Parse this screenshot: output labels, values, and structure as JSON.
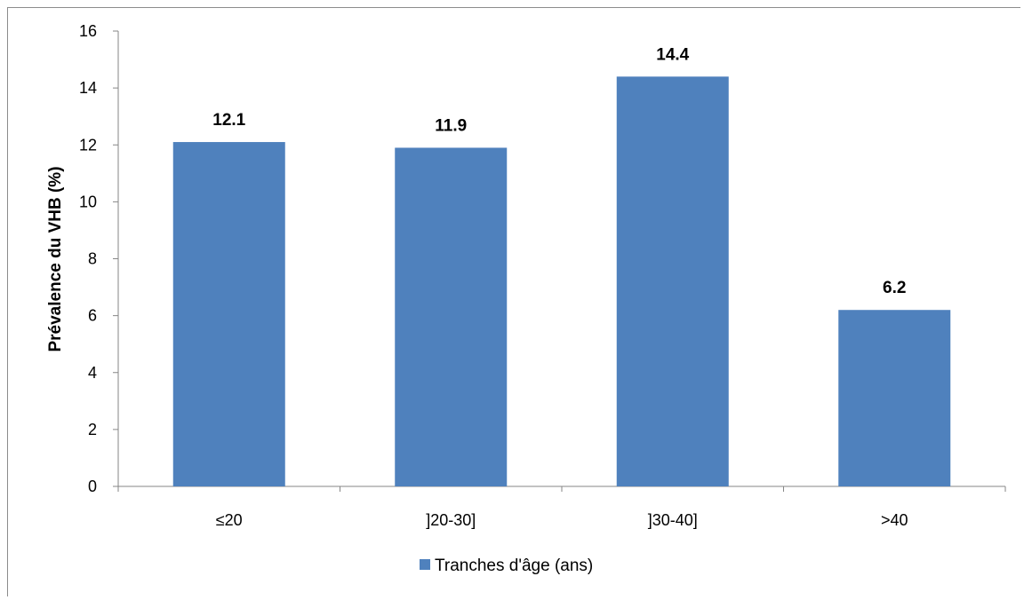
{
  "chart_data": {
    "type": "bar",
    "categories": [
      "≤20",
      "]20-30]",
      "]30-40]",
      ">40"
    ],
    "series": [
      {
        "name": "Tranches d'âge (ans)",
        "values": [
          12.1,
          11.9,
          14.4,
          6.2
        ],
        "color": "#4f81bd"
      }
    ],
    "data_labels": [
      "12.1",
      "11.9",
      "14.4",
      "6.2"
    ],
    "title": "",
    "xlabel": "",
    "ylabel": "Prévalence du VHB (%)",
    "ylim": [
      0,
      16
    ],
    "yticks": [
      0,
      2,
      4,
      6,
      8,
      10,
      12,
      14,
      16
    ],
    "grid": false,
    "legend_position": "bottom"
  }
}
